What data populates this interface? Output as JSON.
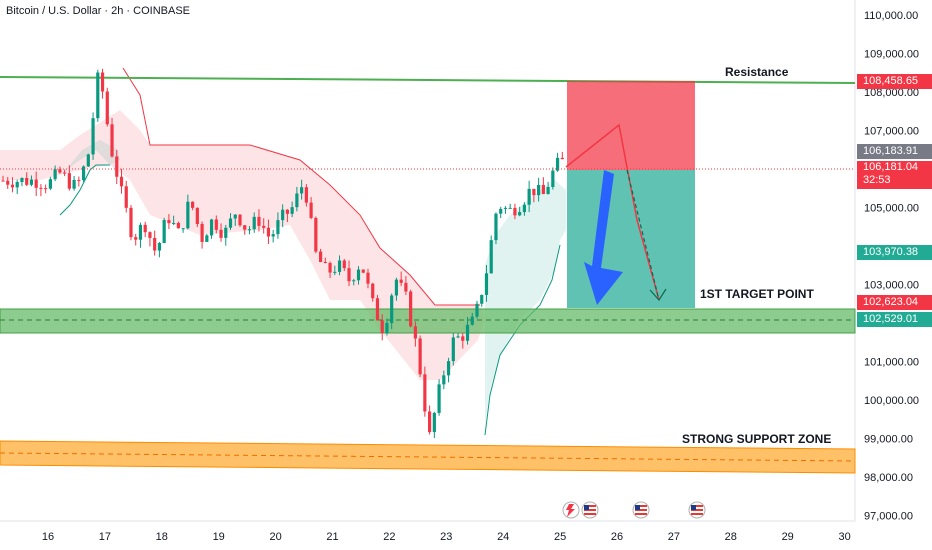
{
  "header": {
    "title": "Bitcoin / U.S. Dollar · 2h · COINBASE"
  },
  "chart_data": {
    "type": "candlestick",
    "symbol": "Bitcoin / U.S. Dollar",
    "interval": "2h",
    "exchange": "COINBASE",
    "x_ticks": [
      "16",
      "17",
      "18",
      "19",
      "20",
      "21",
      "22",
      "23",
      "24",
      "25",
      "26",
      "27",
      "28",
      "29",
      "30"
    ],
    "y_ticks": [
      "110,000.00",
      "109,000.00",
      "108,000.00",
      "107,000.00",
      "105,000.00",
      "103,000.00",
      "101,000.00",
      "100,000.00",
      "99,000.00",
      "98,000.00",
      "97,000.00"
    ],
    "y_range": [
      96900,
      110400
    ],
    "price_labels": [
      {
        "text": "108,458.65",
        "value": 108458.65,
        "color": "#f23645"
      },
      {
        "text": "106,183.91",
        "value": 106183.91,
        "color": "#787b86"
      },
      {
        "text": "106,181.04",
        "value": 106181.04,
        "color": "#f23645",
        "countdown": "32:53"
      },
      {
        "text": "103,970.38",
        "value": 103970.38,
        "color": "#22ab94"
      },
      {
        "text": "102,623.04",
        "value": 102623.04,
        "color": "#f23645"
      },
      {
        "text": "102,529.01",
        "value": 102529.01,
        "color": "#22ab94"
      }
    ],
    "annotations": [
      "Resistance",
      "1ST TARGET POINT",
      "STRONG SUPPORT ZONE"
    ],
    "colors": {
      "up": "#089981",
      "down": "#f23645",
      "resistance": "#4caf50",
      "target_zone": "#66bb6a",
      "support_zone": "#ffa726"
    },
    "close_path": [
      [
        "15.8",
        105700
      ],
      [
        "16.0",
        105600
      ],
      [
        "16.2",
        105900
      ],
      [
        "16.5",
        105500
      ],
      [
        "16.7",
        106300
      ],
      [
        "16.9",
        108600
      ],
      [
        "17.1",
        106600
      ],
      [
        "17.3",
        105300
      ],
      [
        "17.5",
        104200
      ],
      [
        "17.7",
        104600
      ],
      [
        "17.9",
        103800
      ],
      [
        "18.1",
        104800
      ],
      [
        "18.3",
        104300
      ],
      [
        "18.5",
        105200
      ],
      [
        "18.7",
        104200
      ],
      [
        "18.9",
        104700
      ],
      [
        "19.1",
        104300
      ],
      [
        "19.3",
        104900
      ],
      [
        "19.5",
        104400
      ],
      [
        "19.7",
        104700
      ],
      [
        "19.9",
        104200
      ],
      [
        "20.1",
        104700
      ],
      [
        "20.3",
        105000
      ],
      [
        "20.5",
        105700
      ],
      [
        "20.7",
        103800
      ],
      [
        "20.9",
        103300
      ],
      [
        "21.1",
        103500
      ],
      [
        "21.3",
        103100
      ],
      [
        "21.5",
        103600
      ],
      [
        "21.7",
        102500
      ],
      [
        "21.9",
        101800
      ],
      [
        "22.1",
        103200
      ],
      [
        "22.3",
        102600
      ],
      [
        "22.5",
        101200
      ],
      [
        "22.7",
        99000
      ],
      [
        "22.9",
        100400
      ],
      [
        "23.1",
        101500
      ],
      [
        "23.3",
        101700
      ],
      [
        "23.5",
        102100
      ],
      [
        "23.7",
        103300
      ],
      [
        "23.9",
        105100
      ],
      [
        "24.1",
        104900
      ],
      [
        "24.3",
        105100
      ],
      [
        "24.5",
        105500
      ],
      [
        "24.7",
        105300
      ],
      [
        "24.9",
        106000
      ],
      [
        "25.0",
        106180
      ]
    ],
    "position": {
      "type": "short",
      "entry": 106181.04,
      "stop": 108458.65,
      "target": 102623.04
    },
    "resistance_level": 108458.65,
    "target_zone": [
      102300,
      102900
    ],
    "support_zone": [
      98100,
      98900
    ]
  }
}
